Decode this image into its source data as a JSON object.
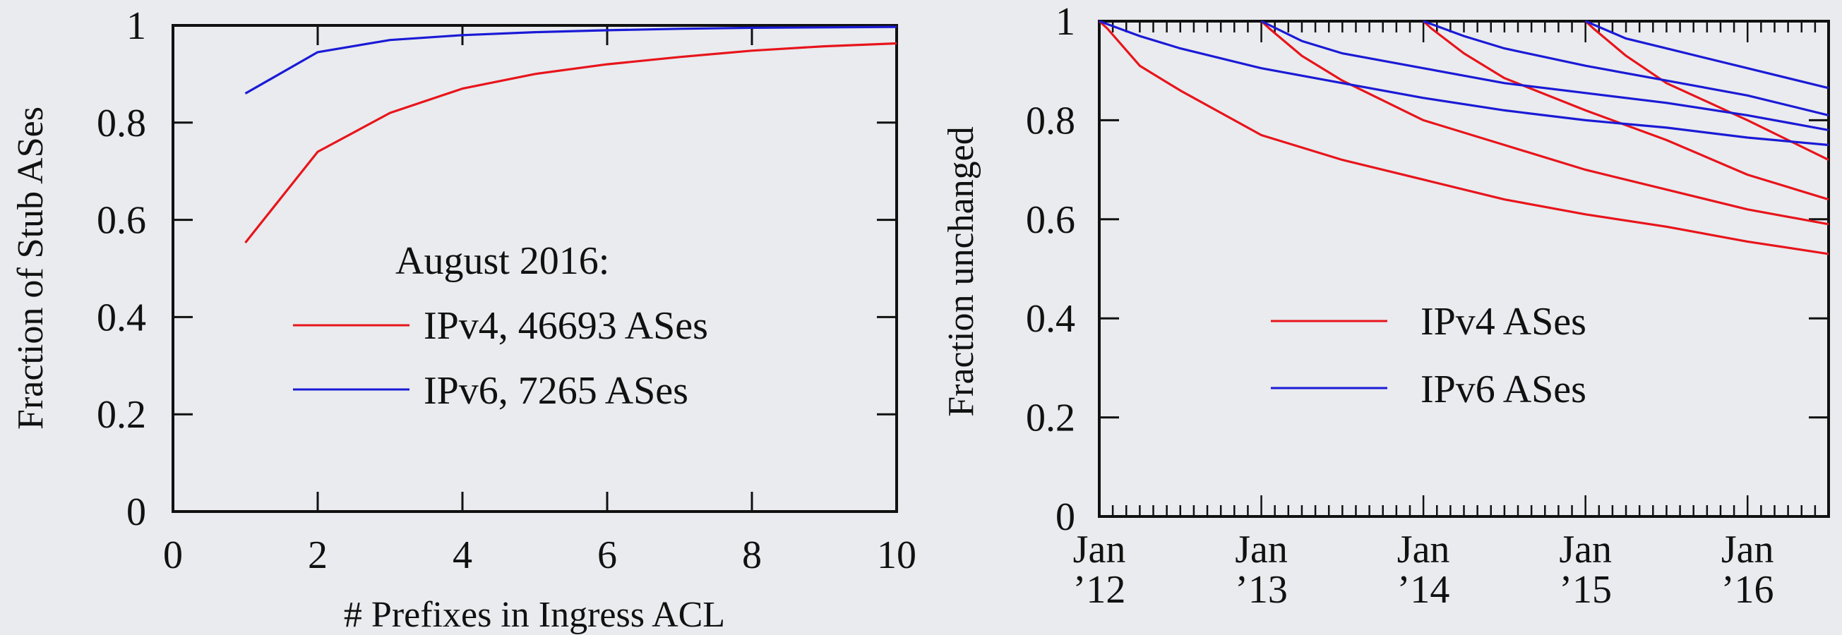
{
  "chart_data": [
    {
      "type": "line",
      "xlabel": "# Prefixes in Ingress ACL",
      "ylabel": "Fraction of Stub ASes",
      "xlim": [
        0,
        10
      ],
      "ylim": [
        0,
        1
      ],
      "xticks": [
        "0",
        "2",
        "4",
        "6",
        "8",
        "10"
      ],
      "yticks": [
        "0",
        "0.2",
        "0.4",
        "0.6",
        "0.8",
        "1"
      ],
      "legend_title": "August 2016:",
      "legend_position": "center",
      "series": [
        {
          "name": "IPv4, 46693 ASes",
          "color": "#e8141b",
          "x": [
            1,
            2,
            3,
            4,
            5,
            6,
            7,
            8,
            9,
            10
          ],
          "y": [
            0.553,
            0.74,
            0.82,
            0.87,
            0.9,
            0.92,
            0.935,
            0.948,
            0.957,
            0.963
          ]
        },
        {
          "name": "IPv6, 7265 ASes",
          "color": "#1a1ad6",
          "x": [
            1,
            2,
            3,
            4,
            5,
            6,
            7,
            8,
            9,
            10
          ],
          "y": [
            0.86,
            0.945,
            0.97,
            0.98,
            0.986,
            0.99,
            0.993,
            0.995,
            0.996,
            0.997
          ]
        }
      ]
    },
    {
      "type": "line",
      "xlabel": "",
      "ylabel": "Fraction unchanged",
      "xlim": [
        "2012-01",
        "2016-07"
      ],
      "ylim": [
        0,
        1
      ],
      "xticks": [
        {
          "line1": "Jan",
          "line2": "’12",
          "date": "2012-01"
        },
        {
          "line1": "Jan",
          "line2": "’13",
          "date": "2013-01"
        },
        {
          "line1": "Jan",
          "line2": "’14",
          "date": "2014-01"
        },
        {
          "line1": "Jan",
          "line2": "’15",
          "date": "2015-01"
        },
        {
          "line1": "Jan",
          "line2": "’16",
          "date": "2016-01"
        }
      ],
      "yticks": [
        "0",
        "0.2",
        "0.4",
        "0.6",
        "0.8",
        "1"
      ],
      "legend_position": "center-left",
      "legend": [
        {
          "name": "IPv4 ASes",
          "color": "#e8141b"
        },
        {
          "name": "IPv6 ASes",
          "color": "#1a1ad6"
        }
      ],
      "series": [
        {
          "protocol": "IPv4",
          "start": "2012-01",
          "color": "#e8141b",
          "t": [
            0,
            0.05,
            0.25,
            0.5,
            1,
            1.5,
            2,
            2.5,
            3,
            3.5,
            4,
            4.5
          ],
          "y": [
            1,
            0.985,
            0.91,
            0.86,
            0.77,
            0.72,
            0.68,
            0.64,
            0.61,
            0.585,
            0.555,
            0.53
          ]
        },
        {
          "protocol": "IPv4",
          "start": "2013-01",
          "color": "#e8141b",
          "t": [
            0,
            0.05,
            0.25,
            0.5,
            1,
            1.5,
            2,
            2.5,
            3,
            3.5
          ],
          "y": [
            1,
            0.985,
            0.93,
            0.88,
            0.8,
            0.75,
            0.7,
            0.66,
            0.62,
            0.59
          ]
        },
        {
          "protocol": "IPv4",
          "start": "2014-01",
          "color": "#e8141b",
          "t": [
            0,
            0.05,
            0.25,
            0.5,
            1,
            1.5,
            2,
            2.5
          ],
          "y": [
            1,
            0.985,
            0.935,
            0.885,
            0.82,
            0.76,
            0.69,
            0.64
          ]
        },
        {
          "protocol": "IPv4",
          "start": "2015-01",
          "color": "#e8141b",
          "t": [
            0,
            0.05,
            0.25,
            0.5,
            1,
            1.5
          ],
          "y": [
            1,
            0.985,
            0.93,
            0.875,
            0.8,
            0.72
          ]
        },
        {
          "protocol": "IPv6",
          "start": "2012-01",
          "color": "#1a1ad6",
          "t": [
            0,
            0.25,
            0.5,
            1,
            1.5,
            2,
            2.5,
            3,
            3.5,
            4,
            4.5
          ],
          "y": [
            1,
            0.97,
            0.945,
            0.905,
            0.875,
            0.845,
            0.82,
            0.8,
            0.785,
            0.765,
            0.75
          ]
        },
        {
          "protocol": "IPv6",
          "start": "2013-01",
          "color": "#1a1ad6",
          "t": [
            0,
            0.25,
            0.5,
            1,
            1.5,
            2,
            2.5,
            3,
            3.5
          ],
          "y": [
            1,
            0.96,
            0.935,
            0.905,
            0.875,
            0.855,
            0.835,
            0.81,
            0.78
          ]
        },
        {
          "protocol": "IPv6",
          "start": "2014-01",
          "color": "#1a1ad6",
          "t": [
            0,
            0.25,
            0.5,
            1,
            1.5,
            2,
            2.5
          ],
          "y": [
            1,
            0.97,
            0.945,
            0.91,
            0.88,
            0.85,
            0.81
          ]
        },
        {
          "protocol": "IPv6",
          "start": "2015-01",
          "color": "#1a1ad6",
          "t": [
            0,
            0.25,
            0.5,
            1,
            1.5
          ],
          "y": [
            1,
            0.965,
            0.945,
            0.905,
            0.865
          ]
        }
      ]
    }
  ]
}
